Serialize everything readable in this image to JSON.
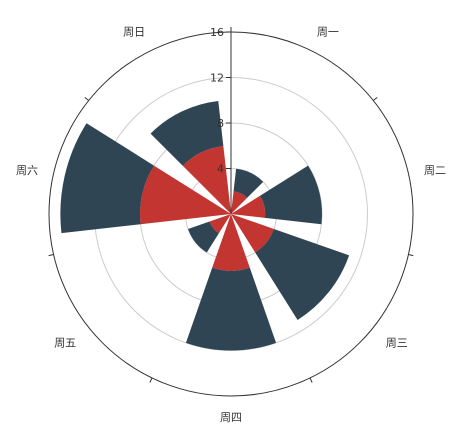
{
  "chart_data": {
    "type": "polar-stacked-bar",
    "categories": [
      "周一",
      "周二",
      "周三",
      "周四",
      "周五",
      "周六",
      "周日"
    ],
    "radial_ticks": [
      "0",
      "4",
      "8",
      "12",
      "16"
    ],
    "rlim": [
      0,
      16
    ],
    "grid": true,
    "series": [
      {
        "values": [
          2,
          3,
          4,
          5,
          2,
          8,
          6
        ],
        "color": "#c23531"
      },
      {
        "values": [
          2,
          5,
          7,
          7,
          2,
          7,
          4
        ],
        "color": "#2f4554"
      }
    ]
  }
}
